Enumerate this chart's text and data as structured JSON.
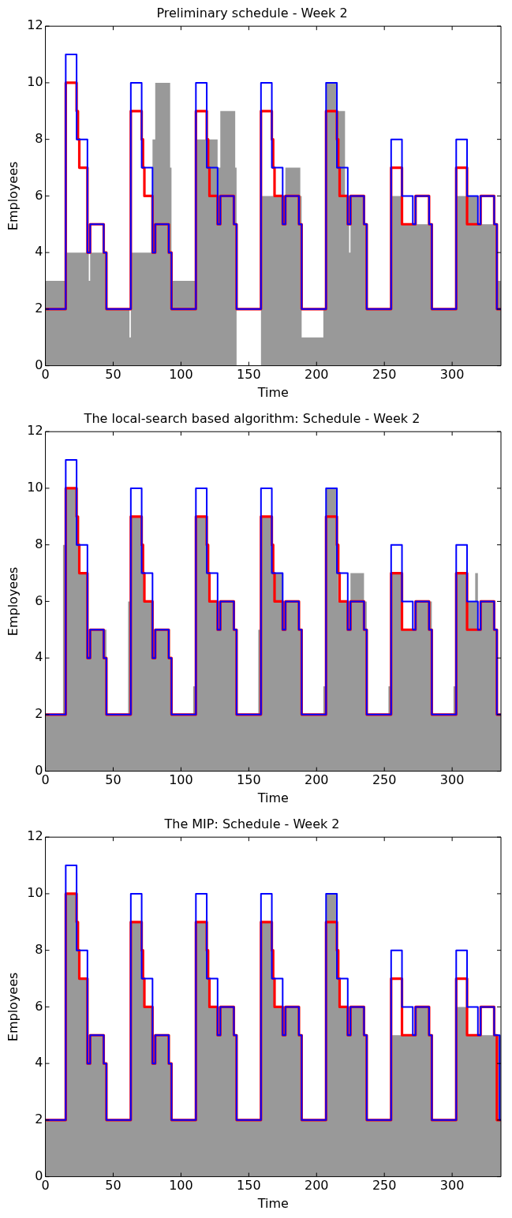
{
  "chart_data": [
    {
      "type": "step",
      "title": "Preliminary schedule - Week 2",
      "xlabel": "Time",
      "ylabel": "Employees",
      "xlim": [
        0,
        336
      ],
      "xticks": [
        0,
        50,
        100,
        150,
        200,
        250,
        300
      ],
      "ylim": [
        0,
        12
      ],
      "yticks": [
        0,
        2,
        4,
        6,
        8,
        10,
        12
      ],
      "grid": false,
      "legend": false,
      "marker": "none",
      "series": [
        {
          "type": "area",
          "color": "#999999",
          "x": [
            0,
            15,
            32,
            33,
            45,
            62,
            63,
            79,
            81,
            92,
            93,
            111,
            127,
            129,
            140,
            141,
            159,
            177,
            188,
            189,
            205,
            207,
            215,
            221,
            224,
            225,
            235,
            237,
            255,
            263,
            285,
            303,
            319,
            333,
            336
          ],
          "values": [
            3,
            4,
            3,
            4,
            2,
            1,
            4,
            8,
            10,
            7,
            3,
            8,
            7,
            9,
            7,
            0,
            6,
            7,
            6,
            1,
            2,
            10,
            9,
            6,
            4,
            6,
            5,
            2,
            6,
            5,
            2,
            6,
            5,
            3,
            3
          ]
        },
        {
          "color": "#ff0000",
          "x": [
            0,
            15,
            23,
            24,
            25,
            31,
            33,
            43,
            45,
            63,
            71,
            72,
            73,
            79,
            81,
            91,
            93,
            111,
            119,
            120,
            121,
            127,
            129,
            139,
            141,
            159,
            167,
            168,
            169,
            175,
            177,
            187,
            189,
            207,
            215,
            216,
            217,
            223,
            225,
            235,
            237,
            255,
            263,
            273,
            283,
            285,
            303,
            311,
            321,
            331,
            333,
            336
          ],
          "values": [
            2,
            10,
            9,
            8,
            7,
            4,
            5,
            4,
            2,
            9,
            8,
            7,
            6,
            4,
            5,
            4,
            2,
            9,
            8,
            7,
            6,
            5,
            6,
            5,
            2,
            9,
            8,
            7,
            6,
            5,
            6,
            5,
            2,
            9,
            8,
            7,
            6,
            5,
            6,
            5,
            2,
            7,
            5,
            6,
            5,
            2,
            7,
            5,
            6,
            5,
            2,
            2
          ]
        },
        {
          "color": "#0000ff",
          "x": [
            0,
            15,
            23,
            31,
            33,
            43,
            45,
            63,
            71,
            79,
            81,
            91,
            93,
            111,
            119,
            127,
            129,
            139,
            141,
            159,
            167,
            175,
            177,
            187,
            189,
            207,
            215,
            223,
            225,
            235,
            237,
            255,
            263,
            271,
            273,
            283,
            285,
            303,
            311,
            319,
            321,
            331,
            333,
            336
          ],
          "values": [
            2,
            11,
            8,
            4,
            5,
            4,
            2,
            10,
            7,
            4,
            5,
            4,
            2,
            10,
            7,
            5,
            6,
            5,
            2,
            10,
            7,
            5,
            6,
            5,
            2,
            10,
            7,
            5,
            6,
            5,
            2,
            8,
            6,
            5,
            6,
            5,
            2,
            8,
            6,
            5,
            6,
            5,
            2,
            2
          ]
        }
      ]
    },
    {
      "type": "step",
      "title": "The local-search based algorithm: Schedule - Week 2",
      "xlabel": "Time",
      "ylabel": "Employees",
      "xlim": [
        0,
        336
      ],
      "xticks": [
        0,
        50,
        100,
        150,
        200,
        250,
        300
      ],
      "ylim": [
        0,
        12
      ],
      "yticks": [
        0,
        2,
        4,
        6,
        8,
        10,
        12
      ],
      "grid": false,
      "legend": false,
      "marker": "none",
      "series": [
        {
          "type": "area",
          "color": "#999999",
          "x": [
            0,
            13,
            15,
            23,
            24,
            25,
            31,
            33,
            45,
            61,
            63,
            71,
            72,
            73,
            79,
            81,
            91,
            93,
            109,
            111,
            119,
            120,
            121,
            127,
            129,
            139,
            141,
            157,
            159,
            167,
            168,
            175,
            177,
            187,
            189,
            205,
            207,
            215,
            216,
            223,
            225,
            235,
            237,
            253,
            255,
            263,
            273,
            285,
            301,
            303,
            311,
            317,
            319,
            321,
            331,
            333,
            336
          ],
          "values": [
            2,
            8,
            10,
            9,
            8,
            7,
            4,
            5,
            2,
            6,
            9,
            8,
            7,
            6,
            4,
            5,
            4,
            2,
            3,
            9,
            8,
            7,
            6,
            5,
            6,
            5,
            2,
            5,
            9,
            8,
            7,
            5,
            6,
            5,
            2,
            3,
            10,
            8,
            6,
            5,
            7,
            6,
            2,
            3,
            7,
            5,
            6,
            2,
            3,
            7,
            6,
            7,
            5,
            6,
            5,
            2,
            2
          ]
        },
        {
          "color": "#ff0000",
          "x": [
            0,
            15,
            23,
            24,
            25,
            31,
            33,
            43,
            45,
            63,
            71,
            72,
            73,
            79,
            81,
            91,
            93,
            111,
            119,
            120,
            121,
            127,
            129,
            139,
            141,
            159,
            167,
            168,
            169,
            175,
            177,
            187,
            189,
            207,
            215,
            216,
            217,
            223,
            225,
            235,
            237,
            255,
            263,
            273,
            283,
            285,
            303,
            311,
            321,
            331,
            333,
            336
          ],
          "values": [
            2,
            10,
            9,
            8,
            7,
            4,
            5,
            4,
            2,
            9,
            8,
            7,
            6,
            4,
            5,
            4,
            2,
            9,
            8,
            7,
            6,
            5,
            6,
            5,
            2,
            9,
            8,
            7,
            6,
            5,
            6,
            5,
            2,
            9,
            8,
            7,
            6,
            5,
            6,
            5,
            2,
            7,
            5,
            6,
            5,
            2,
            7,
            5,
            6,
            5,
            2,
            2
          ]
        },
        {
          "color": "#0000ff",
          "x": [
            0,
            15,
            23,
            31,
            33,
            43,
            45,
            63,
            71,
            79,
            81,
            91,
            93,
            111,
            119,
            127,
            129,
            139,
            141,
            159,
            167,
            175,
            177,
            187,
            189,
            207,
            215,
            223,
            225,
            235,
            237,
            255,
            263,
            271,
            273,
            283,
            285,
            303,
            311,
            319,
            321,
            331,
            333,
            336
          ],
          "values": [
            2,
            11,
            8,
            4,
            5,
            4,
            2,
            10,
            7,
            4,
            5,
            4,
            2,
            10,
            7,
            5,
            6,
            5,
            2,
            10,
            7,
            5,
            6,
            5,
            2,
            10,
            7,
            5,
            6,
            5,
            2,
            8,
            6,
            5,
            6,
            5,
            2,
            8,
            6,
            5,
            6,
            5,
            2,
            2
          ]
        }
      ]
    },
    {
      "type": "step",
      "title": "The MIP: Schedule - Week 2",
      "xlabel": "Time",
      "ylabel": "Employees",
      "xlim": [
        0,
        336
      ],
      "xticks": [
        0,
        50,
        100,
        150,
        200,
        250,
        300
      ],
      "ylim": [
        0,
        12
      ],
      "yticks": [
        0,
        2,
        4,
        6,
        8,
        10,
        12
      ],
      "grid": false,
      "legend": false,
      "marker": "none",
      "series": [
        {
          "type": "area",
          "color": "#999999",
          "x": [
            0,
            15,
            23,
            24,
            25,
            31,
            33,
            43,
            45,
            63,
            71,
            72,
            73,
            79,
            81,
            91,
            93,
            111,
            119,
            120,
            121,
            127,
            129,
            139,
            141,
            159,
            167,
            168,
            169,
            175,
            177,
            187,
            189,
            207,
            215,
            216,
            217,
            223,
            225,
            235,
            237,
            255,
            273,
            283,
            285,
            303,
            311,
            336
          ],
          "values": [
            2,
            10,
            9,
            8,
            7,
            4,
            5,
            4,
            2,
            9,
            8,
            7,
            6,
            4,
            5,
            4,
            2,
            9,
            8,
            7,
            6,
            5,
            6,
            5,
            2,
            9,
            8,
            7,
            6,
            5,
            6,
            5,
            2,
            10,
            8,
            7,
            6,
            5,
            6,
            5,
            2,
            5,
            6,
            5,
            2,
            6,
            5,
            5
          ]
        },
        {
          "color": "#ff0000",
          "x": [
            0,
            15,
            23,
            24,
            25,
            31,
            33,
            43,
            45,
            63,
            71,
            72,
            73,
            79,
            81,
            91,
            93,
            111,
            119,
            120,
            121,
            127,
            129,
            139,
            141,
            159,
            167,
            168,
            169,
            175,
            177,
            187,
            189,
            207,
            215,
            216,
            217,
            223,
            225,
            235,
            237,
            255,
            263,
            273,
            283,
            285,
            303,
            311,
            321,
            331,
            333,
            336
          ],
          "values": [
            2,
            10,
            9,
            8,
            7,
            4,
            5,
            4,
            2,
            9,
            8,
            7,
            6,
            4,
            5,
            4,
            2,
            9,
            8,
            7,
            6,
            5,
            6,
            5,
            2,
            9,
            8,
            7,
            6,
            5,
            6,
            5,
            2,
            9,
            8,
            7,
            6,
            5,
            6,
            5,
            2,
            7,
            5,
            6,
            5,
            2,
            7,
            5,
            6,
            5,
            2,
            2
          ]
        },
        {
          "color": "#0000ff",
          "x": [
            0,
            15,
            23,
            31,
            33,
            43,
            45,
            63,
            71,
            79,
            81,
            91,
            93,
            111,
            119,
            127,
            129,
            139,
            141,
            159,
            167,
            175,
            177,
            187,
            189,
            207,
            215,
            223,
            225,
            235,
            237,
            255,
            263,
            271,
            273,
            283,
            285,
            303,
            311,
            319,
            321,
            331,
            335,
            336
          ],
          "values": [
            2,
            11,
            8,
            4,
            5,
            4,
            2,
            10,
            7,
            4,
            5,
            4,
            2,
            10,
            7,
            5,
            6,
            5,
            2,
            10,
            7,
            5,
            6,
            5,
            2,
            10,
            7,
            5,
            6,
            5,
            2,
            8,
            6,
            5,
            6,
            5,
            2,
            8,
            6,
            5,
            6,
            5,
            2,
            2
          ]
        }
      ]
    }
  ]
}
